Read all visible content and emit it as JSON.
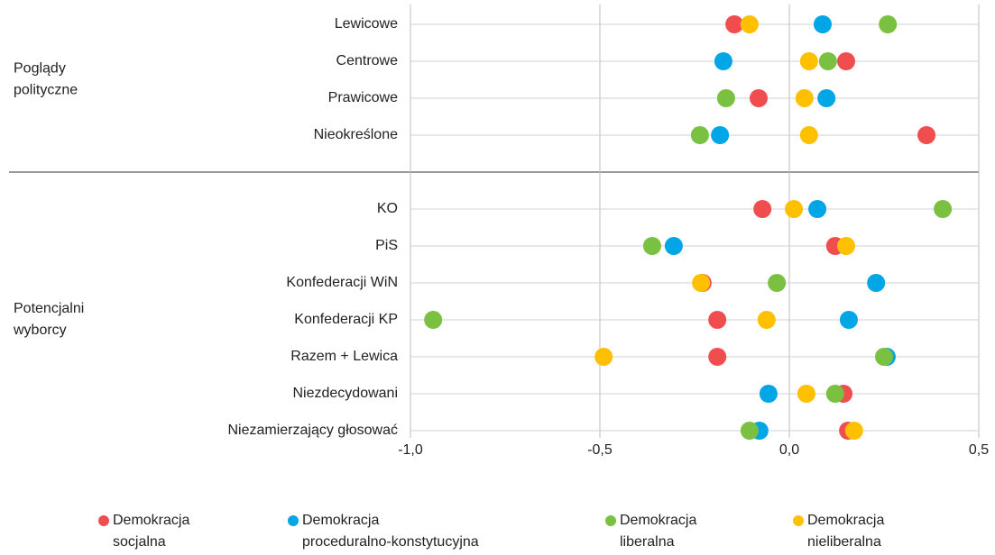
{
  "chart_data": {
    "type": "dot",
    "groups": [
      {
        "name": "Poglądy polityczne",
        "categories": [
          "Lewicowe",
          "Centrowe",
          "Prawicowe",
          "Nieokreślone"
        ]
      },
      {
        "name": "Potencjalni wyborcy",
        "categories": [
          "KO",
          "PiS",
          "Konfederacji WiN",
          "Konfederacji KP",
          "Razem + Lewica",
          "Niezdecydowani",
          "Niezamierzający głosować"
        ]
      }
    ],
    "series": [
      {
        "name": "Demokracja socjalna",
        "color": "#f04e4e",
        "values": [
          -0.145,
          0.15,
          -0.081,
          0.362,
          -0.071,
          0.121,
          -0.229,
          -0.19,
          -0.19,
          0.143,
          0.155
        ]
      },
      {
        "name": "Demokracja proceduralno-konstytucyjna",
        "color": "#00a6e6",
        "values": [
          0.088,
          -0.174,
          0.098,
          -0.183,
          0.074,
          -0.305,
          0.229,
          0.157,
          0.257,
          -0.055,
          -0.079
        ]
      },
      {
        "name": "Demokracja liberalna",
        "color": "#7ac142",
        "values": [
          0.26,
          0.102,
          -0.167,
          -0.236,
          0.405,
          -0.362,
          -0.033,
          -0.94,
          0.25,
          0.121,
          -0.105
        ]
      },
      {
        "name": "Demokracja nieliberalna",
        "color": "#ffc000",
        "values": [
          -0.105,
          0.052,
          0.04,
          0.052,
          0.012,
          0.15,
          -0.233,
          -0.06,
          -0.49,
          0.045,
          0.171
        ]
      }
    ],
    "xlim": [
      -1.0,
      0.5
    ],
    "xticks": [
      {
        "value": -1.0,
        "label": "-1,0"
      },
      {
        "value": -0.5,
        "label": "-0,5"
      },
      {
        "value": 0,
        "label": "0,0"
      },
      {
        "value": 0.5,
        "label": "0,5"
      }
    ],
    "grid": true
  }
}
